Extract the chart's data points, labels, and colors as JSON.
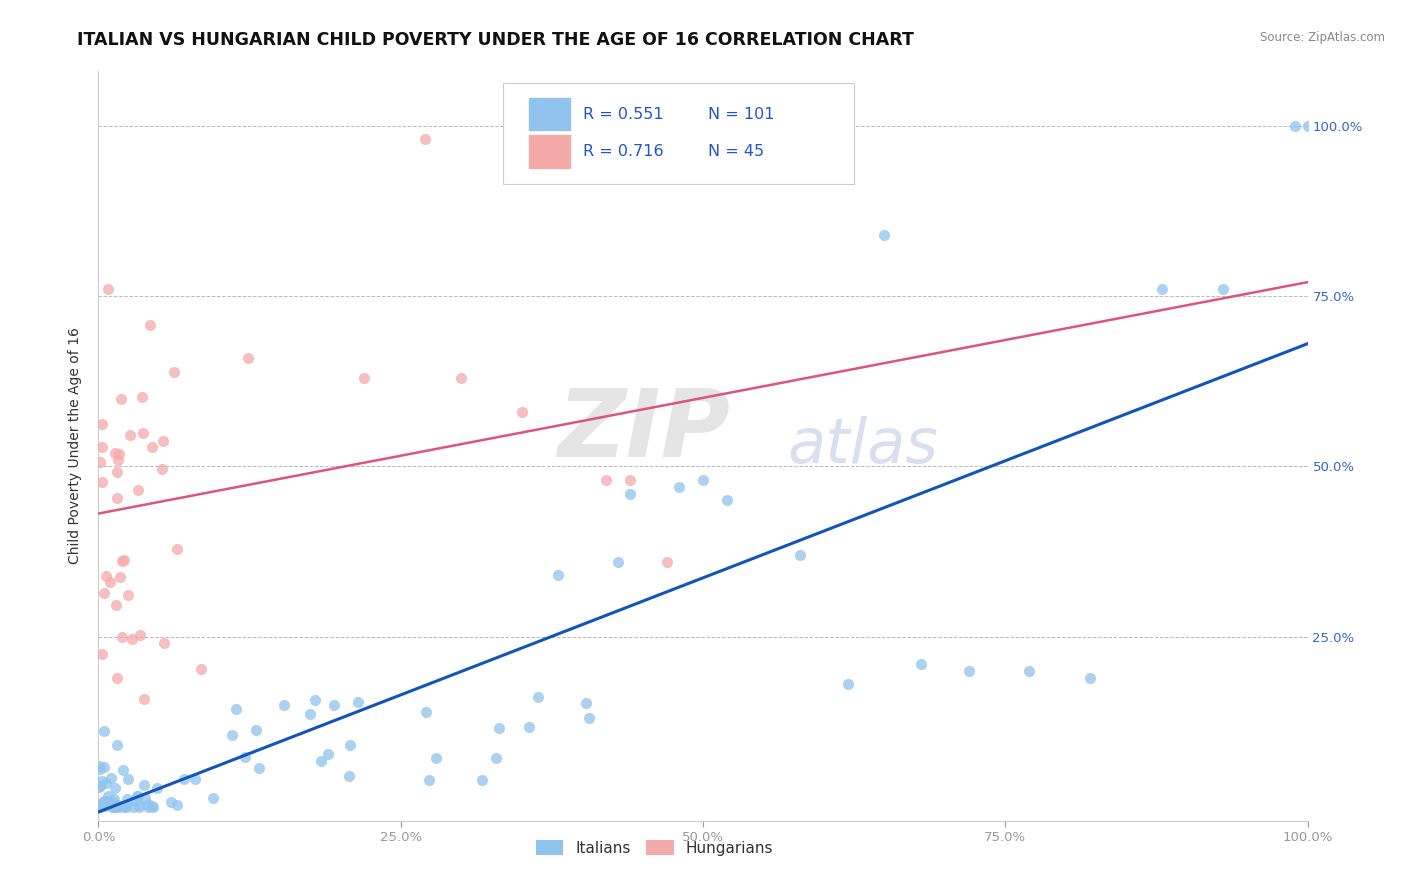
{
  "title": "ITALIAN VS HUNGARIAN CHILD POVERTY UNDER THE AGE OF 16 CORRELATION CHART",
  "source": "Source: ZipAtlas.com",
  "ylabel": "Child Poverty Under the Age of 16",
  "xlim": [
    0.0,
    1.0
  ],
  "ylim": [
    -0.02,
    1.08
  ],
  "x_tick_labels": [
    "0.0%",
    "25.0%",
    "50.0%",
    "75.0%",
    "100.0%"
  ],
  "x_tick_vals": [
    0.0,
    0.25,
    0.5,
    0.75,
    1.0
  ],
  "y_tick_labels": [
    "25.0%",
    "50.0%",
    "75.0%",
    "100.0%"
  ],
  "y_tick_vals": [
    0.25,
    0.5,
    0.75,
    1.0
  ],
  "italian_color": "#90C4EE",
  "hungarian_color": "#F5AAAA",
  "italian_line_color": "#1155BB",
  "hungarian_line_color": "#DD5577",
  "italian_R": 0.551,
  "italian_N": 101,
  "hungarian_R": 0.716,
  "hungarian_N": 45,
  "legend_label_italian": "Italians",
  "legend_label_hungarian": "Hungarians",
  "watermark_zip": "ZIP",
  "watermark_atlas": "atlas",
  "background_color": "#FFFFFF",
  "grid_color": "#BBBBBB",
  "title_fontsize": 12.5,
  "label_fontsize": 10,
  "tick_fontsize": 9.5,
  "legend_fontsize": 11
}
